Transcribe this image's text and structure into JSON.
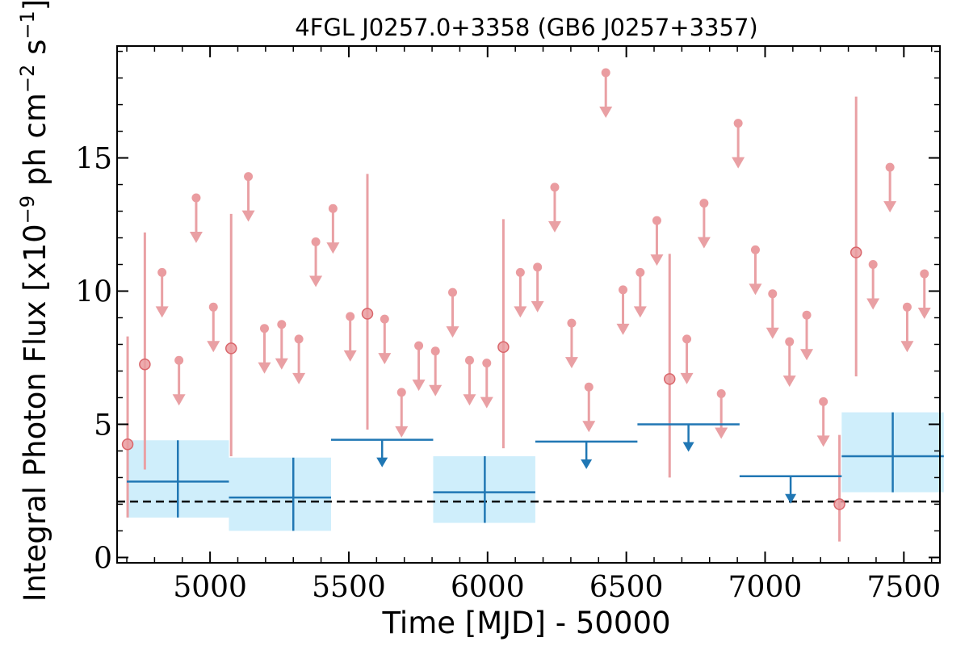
{
  "chart_data": {
    "type": "scatter",
    "title": "4FGL J0257.0+3358 (GB6 J0257+3357)",
    "xlabel": "Time [MJD] - 50000",
    "ylabel": "Integral Photon Flux [x10",
    "ylabel_exp1": "−9",
    "ylabel_mid": " ph cm",
    "ylabel_exp2": "−2",
    "ylabel_mid2": " s",
    "ylabel_exp3": "−1",
    "ylabel_end": "]",
    "xlim": [
      4665,
      7630
    ],
    "ylim": [
      -0.2,
      19.2
    ],
    "xticks": [
      5000,
      5500,
      6000,
      6500,
      7000,
      7500
    ],
    "yticks": [
      0,
      5,
      10,
      15
    ],
    "colors": {
      "short_bins": "#e9a0a4",
      "short_bins_marker": "#ea9ca0",
      "short_bins_detection_edge": "#d9666b",
      "long_bins": "#2077b4",
      "long_bins_band": "#cfeefb",
      "reference": "#000000"
    },
    "reference_level": 2.1,
    "series": [
      {
        "kind": "short-bin-detections",
        "points": [
          {
            "x": 4703,
            "y": 4.25,
            "lo": 1.5,
            "hi": 8.3
          },
          {
            "x": 4765,
            "y": 7.25,
            "lo": 3.3,
            "hi": 12.2
          },
          {
            "x": 5076,
            "y": 7.85,
            "lo": 3.8,
            "hi": 12.9
          },
          {
            "x": 5567,
            "y": 9.15,
            "lo": 4.8,
            "hi": 14.4
          },
          {
            "x": 6057,
            "y": 7.9,
            "lo": 4.1,
            "hi": 12.7
          },
          {
            "x": 6656,
            "y": 6.7,
            "lo": 3.0,
            "hi": 11.4
          },
          {
            "x": 7328,
            "y": 11.45,
            "lo": 6.8,
            "hi": 17.3
          },
          {
            "x": 7268,
            "y": 2.0,
            "lo": 0.6,
            "hi": 4.6
          }
        ]
      },
      {
        "kind": "short-bin-upper-limits",
        "points": [
          {
            "x": 4827,
            "y": 10.7
          },
          {
            "x": 4888,
            "y": 7.4
          },
          {
            "x": 4950,
            "y": 13.5
          },
          {
            "x": 5012,
            "y": 9.4
          },
          {
            "x": 5138,
            "y": 14.3
          },
          {
            "x": 5196,
            "y": 8.6
          },
          {
            "x": 5258,
            "y": 8.75
          },
          {
            "x": 5320,
            "y": 8.2
          },
          {
            "x": 5381,
            "y": 11.85
          },
          {
            "x": 5443,
            "y": 13.1
          },
          {
            "x": 5505,
            "y": 9.05
          },
          {
            "x": 5629,
            "y": 8.95
          },
          {
            "x": 5690,
            "y": 6.2
          },
          {
            "x": 5752,
            "y": 7.95
          },
          {
            "x": 5812,
            "y": 7.75
          },
          {
            "x": 5874,
            "y": 9.95
          },
          {
            "x": 5935,
            "y": 7.4
          },
          {
            "x": 5997,
            "y": 7.3
          },
          {
            "x": 6118,
            "y": 10.7
          },
          {
            "x": 6180,
            "y": 10.9
          },
          {
            "x": 6242,
            "y": 13.9
          },
          {
            "x": 6303,
            "y": 8.8
          },
          {
            "x": 6365,
            "y": 6.4
          },
          {
            "x": 6426,
            "y": 18.2
          },
          {
            "x": 6488,
            "y": 10.05
          },
          {
            "x": 6550,
            "y": 10.7
          },
          {
            "x": 6610,
            "y": 12.65
          },
          {
            "x": 6718,
            "y": 8.2
          },
          {
            "x": 6780,
            "y": 13.3
          },
          {
            "x": 6842,
            "y": 6.15
          },
          {
            "x": 6903,
            "y": 16.3
          },
          {
            "x": 6965,
            "y": 11.55
          },
          {
            "x": 7027,
            "y": 9.9
          },
          {
            "x": 7088,
            "y": 8.1
          },
          {
            "x": 7150,
            "y": 9.1
          },
          {
            "x": 7210,
            "y": 5.85
          },
          {
            "x": 7389,
            "y": 11.0
          },
          {
            "x": 7450,
            "y": 14.65
          },
          {
            "x": 7512,
            "y": 9.4
          },
          {
            "x": 7574,
            "y": 10.65
          }
        ]
      },
      {
        "kind": "long-bin-detections",
        "points": [
          {
            "x0": 4700,
            "x1": 5068,
            "x": 4884,
            "y": 2.85,
            "lo": 1.5,
            "hi": 4.4
          },
          {
            "x0": 5068,
            "x1": 5436,
            "x": 5300,
            "y": 2.25,
            "lo": 1.0,
            "hi": 3.75
          },
          {
            "x0": 5804,
            "x1": 6172,
            "x": 5990,
            "y": 2.45,
            "lo": 1.3,
            "hi": 3.8
          },
          {
            "x0": 7276,
            "x1": 7644,
            "x": 7460,
            "y": 3.8,
            "lo": 2.45,
            "hi": 5.45
          }
        ]
      },
      {
        "kind": "long-bin-upper-limits",
        "points": [
          {
            "x0": 5436,
            "x1": 5804,
            "x": 5620,
            "y": 4.42
          },
          {
            "x0": 6172,
            "x1": 6540,
            "x": 6356,
            "y": 4.35
          },
          {
            "x0": 6540,
            "x1": 6908,
            "x": 6724,
            "y": 5.0
          },
          {
            "x0": 6908,
            "x1": 7276,
            "x": 7092,
            "y": 3.05
          }
        ]
      }
    ]
  }
}
